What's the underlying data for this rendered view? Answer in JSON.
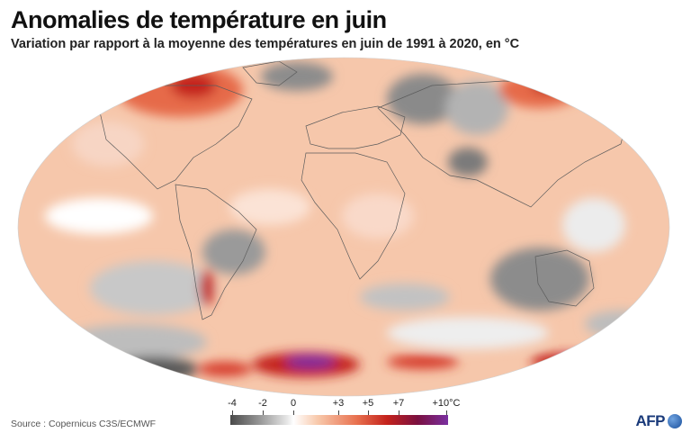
{
  "header": {
    "title": "Anomalies de température en juin",
    "subtitle": "Variation par rapport à la moyenne des températures en juin de 1991 à 2020, en °C"
  },
  "legend": {
    "ticks": [
      "-4",
      "-2",
      "0",
      "+3",
      "+5",
      "+7",
      "+10°C"
    ],
    "tick_values": [
      -4,
      -2,
      0,
      3,
      5,
      7,
      10
    ],
    "colors": {
      "cold_dark": "#4a4a4a",
      "cold_mid": "#9a9a9a",
      "cold_light": "#e6e6e6",
      "neutral": "#ffffff",
      "warm_light": "#f8c9ac",
      "warm_mid": "#e8714f",
      "warm_strong": "#c4221c",
      "warm_extreme": "#7a1040",
      "warm_max": "#7a2fa0"
    }
  },
  "footer": {
    "source": "Source : Copernicus C3S/ECMWF",
    "logo_text": "AFP"
  }
}
